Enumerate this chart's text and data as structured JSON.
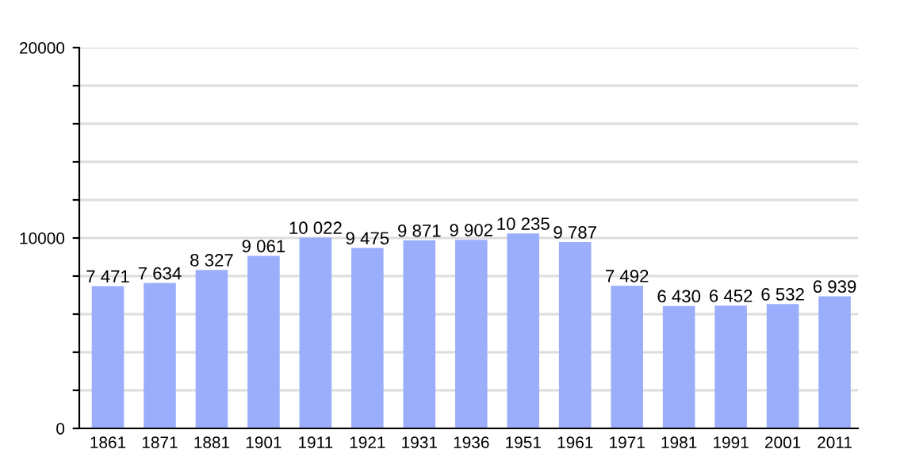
{
  "chart_data": {
    "type": "bar",
    "categories": [
      "1861",
      "1871",
      "1881",
      "1901",
      "1911",
      "1921",
      "1931",
      "1936",
      "1951",
      "1961",
      "1971",
      "1981",
      "1991",
      "2001",
      "2011"
    ],
    "values": [
      7471,
      7634,
      8327,
      9061,
      10022,
      9475,
      9871,
      9902,
      10235,
      9787,
      7492,
      6430,
      6452,
      6532,
      6939
    ],
    "value_labels": [
      "7 471",
      "7 634",
      "8 327",
      "9 061",
      "10 022",
      "9 475",
      "9 871",
      "9 902",
      "10 235",
      "9 787",
      "7 492",
      "6 430",
      "6 452",
      "6 532",
      "6 939"
    ],
    "color": "#9aaefc",
    "ylim": [
      0,
      20000
    ],
    "yticks": [
      0,
      {
        "value": 2000,
        "label": null
      },
      {
        "value": 4000,
        "label": null
      },
      {
        "value": 6000,
        "label": null
      },
      {
        "value": 8000,
        "label": null
      },
      10000,
      {
        "value": 12000,
        "label": null
      },
      {
        "value": 14000,
        "label": null
      },
      {
        "value": 16000,
        "label": null
      },
      {
        "value": 18000,
        "label": null
      },
      20000
    ],
    "grid": "y"
  }
}
